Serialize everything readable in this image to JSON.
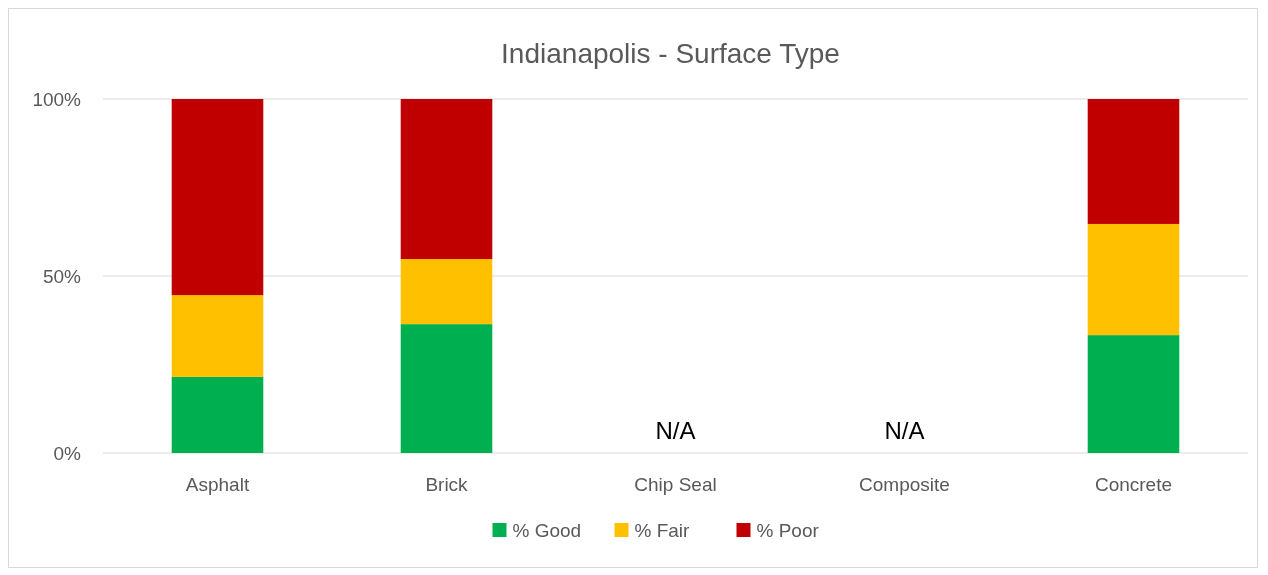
{
  "chart_data": {
    "type": "bar",
    "title": "Indianapolis - Surface Type",
    "categories": [
      "Asphalt",
      "Brick",
      "Chip Seal",
      "Composite",
      "Concrete"
    ],
    "stacked": true,
    "series": [
      {
        "name": "% Good",
        "color": "#00b050",
        "values": [
          21.5,
          36.4,
          null,
          null,
          33.3
        ]
      },
      {
        "name": "% Fair",
        "color": "#ffc000",
        "values": [
          23.1,
          18.4,
          null,
          null,
          31.4
        ]
      },
      {
        "name": "% Poor",
        "color": "#c00000",
        "values": [
          55.4,
          45.2,
          null,
          null,
          35.3
        ]
      }
    ],
    "ylim": [
      0,
      100
    ],
    "yticks": [
      {
        "value": 0,
        "label": "0%"
      },
      {
        "value": 50,
        "label": "50%"
      },
      {
        "value": 100,
        "label": "100%"
      }
    ],
    "grid": "y",
    "legend": "bottom",
    "annotations": [
      "N/A",
      "N/A"
    ]
  }
}
